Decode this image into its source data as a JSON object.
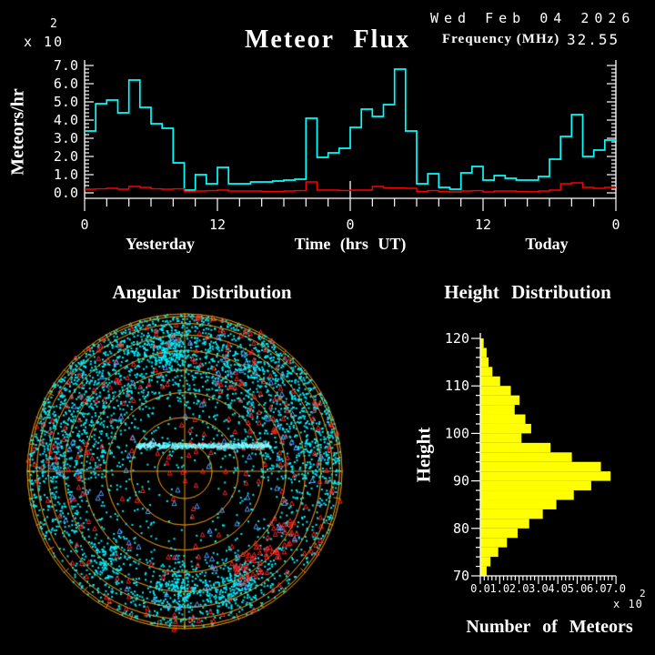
{
  "header": {
    "date": "Wed Feb 04 2026",
    "frequency_label": "Frequency (MHz)",
    "frequency_value": "32.55"
  },
  "flux": {
    "title": "Meteor Flux",
    "scale_base": "x 10",
    "scale_exp": "2",
    "ylabel": "Meteors/hr",
    "ytick_labels": [
      "7.0",
      "6.0",
      "5.0",
      "4.0",
      "3.0",
      "2.0",
      "1.0",
      "0.0"
    ],
    "xtick_labels": [
      "0",
      "12",
      "0",
      "12",
      "0"
    ],
    "xlabel_yesterday": "Yesterday",
    "xlabel_time": "Time (hrs UT)",
    "xlabel_today": "Today"
  },
  "angular": {
    "title": "Angular Distribution"
  },
  "height": {
    "title": "Height Distribution",
    "ylabel": "Height",
    "ytick_labels": [
      "120",
      "110",
      "100",
      "90",
      "80",
      "70"
    ],
    "xtick_labels": [
      "0.0",
      "1.0",
      "2.0",
      "3.0",
      "4.0",
      "5.0",
      "6.0",
      "7.0"
    ],
    "scale_base": "x 10",
    "scale_exp": "2",
    "xlabel": "Number of Meteors"
  },
  "colors": {
    "background": "#000000",
    "text": "#FFFFFF",
    "flux_line": "#00FFFF",
    "background_line": "#FF0000",
    "histogram_fill": "#FFFF00",
    "sky_grid": "#E09010",
    "sky_cyan": "#00F0FF",
    "sky_streak": "#7FF8FF",
    "sky_red": "#FF2222",
    "sky_blue": "#5A9CFF"
  },
  "chart_data": [
    {
      "id": "flux",
      "type": "line",
      "subtype": "step",
      "title": "Meteor Flux",
      "xlabel": "Time (hrs UT)",
      "ylabel": "Meteors/hr",
      "y_scale_factor": 100,
      "ylim": [
        0,
        7
      ],
      "x_hours": {
        "start": 0,
        "end": 48,
        "bin_hours": 1
      },
      "xtick_labels_every_12h": [
        "0",
        "12",
        "0",
        "12",
        "0"
      ],
      "day_labels": [
        "Yesterday",
        "Today"
      ],
      "series": [
        {
          "name": "meteor-flux",
          "color": "#00FFFF",
          "values": [
            3.4,
            4.9,
            5.1,
            4.4,
            6.2,
            4.7,
            3.8,
            3.55,
            1.65,
            0.15,
            1.0,
            0.5,
            1.4,
            0.5,
            0.5,
            0.6,
            0.6,
            0.65,
            0.7,
            0.75,
            4.1,
            1.95,
            2.2,
            2.45,
            3.6,
            4.6,
            4.2,
            4.85,
            6.8,
            3.4,
            0.5,
            1.05,
            0.3,
            0.2,
            1.1,
            1.45,
            0.7,
            0.95,
            0.8,
            0.7,
            0.7,
            0.9,
            1.85,
            3.1,
            4.3,
            2.0,
            2.35,
            2.9
          ]
        },
        {
          "name": "background-rate",
          "color": "#FF0000",
          "values": [
            0.2,
            0.22,
            0.25,
            0.2,
            0.35,
            0.3,
            0.22,
            0.2,
            0.22,
            0.08,
            0.1,
            0.12,
            0.15,
            0.1,
            0.1,
            0.1,
            0.08,
            0.08,
            0.1,
            0.12,
            0.6,
            0.15,
            0.15,
            0.13,
            0.15,
            0.15,
            0.35,
            0.28,
            0.28,
            0.25,
            0.08,
            0.12,
            0.08,
            0.05,
            0.1,
            0.12,
            0.05,
            0.1,
            0.1,
            0.08,
            0.06,
            0.1,
            0.15,
            0.5,
            0.55,
            0.3,
            0.25,
            0.3
          ]
        }
      ]
    },
    {
      "id": "angular",
      "type": "scatter",
      "subtype": "polar-sky-map-orthographic",
      "title": "Angular Distribution",
      "projection": "orthographic, horizon at rim, zenith at center",
      "elevation_rings_deg": [
        0,
        10,
        20,
        30,
        40,
        50,
        60,
        70,
        80
      ],
      "azimuth_tick_step_deg": 10,
      "seed": 20260204,
      "groups": [
        {
          "name": "meteor-echoes-base",
          "color": "#00F0FF",
          "marker": "square",
          "count": 1600
        },
        {
          "name": "meteor-echoes-north-band",
          "color": "#00F0FF",
          "marker": "square",
          "count": 1300
        },
        {
          "name": "meteor-echoes-rim-band",
          "color": "#00F0FF",
          "marker": "square",
          "count": 1000
        },
        {
          "name": "meteor-echo-clusters",
          "color": "#00F0FF",
          "marker": "square",
          "clusters": [
            {
              "dx": -18,
              "dy": -133,
              "s": 12,
              "n": 150
            },
            {
              "dx": -3,
              "dy": 127,
              "s": 14,
              "n": 180
            },
            {
              "dx": 62,
              "dy": 122,
              "s": 13,
              "n": 150
            },
            {
              "dx": 37,
              "dy": 137,
              "s": 10,
              "n": 60
            },
            {
              "dx": -83,
              "dy": 92,
              "s": 12,
              "n": 80
            }
          ]
        },
        {
          "name": "specular-echo-streak",
          "color": "#7FF8FF",
          "marker": "square",
          "streak": {
            "dy": -28,
            "dx_min": -53,
            "dx_max": 95,
            "n": 430,
            "halo_n": 70
          }
        },
        {
          "name": "overdense-echoes",
          "color": "#FF2222",
          "marker": "triangle",
          "counts": {
            "base": 160,
            "north_band": 90,
            "lower_right_arc": 60,
            "streak": 35,
            "rim": 25
          }
        },
        {
          "name": "underdense-echoes",
          "color": "#5A9CFF",
          "marker": "triangle",
          "count": 85
        }
      ]
    },
    {
      "id": "height",
      "type": "bar",
      "subtype": "horizontal-histogram",
      "title": "Height Distribution",
      "ylabel": "Height",
      "xlabel": "Number of Meteors",
      "x_scale_factor": 100,
      "ylim": [
        70,
        120
      ],
      "xlim": [
        0,
        7
      ],
      "bin_km": 2,
      "bins_start_km": [
        70,
        72,
        74,
        76,
        78,
        80,
        82,
        84,
        86,
        88,
        90,
        92,
        94,
        96,
        98,
        100,
        102,
        104,
        106,
        108,
        110,
        112,
        114,
        116,
        118
      ],
      "counts": [
        0.3,
        0.5,
        0.9,
        1.35,
        1.9,
        2.5,
        3.2,
        3.9,
        4.8,
        5.7,
        6.7,
        6.2,
        4.7,
        3.6,
        2.1,
        2.6,
        2.3,
        1.75,
        2.0,
        1.55,
        1.0,
        0.6,
        0.4,
        0.3,
        0.15
      ]
    }
  ]
}
